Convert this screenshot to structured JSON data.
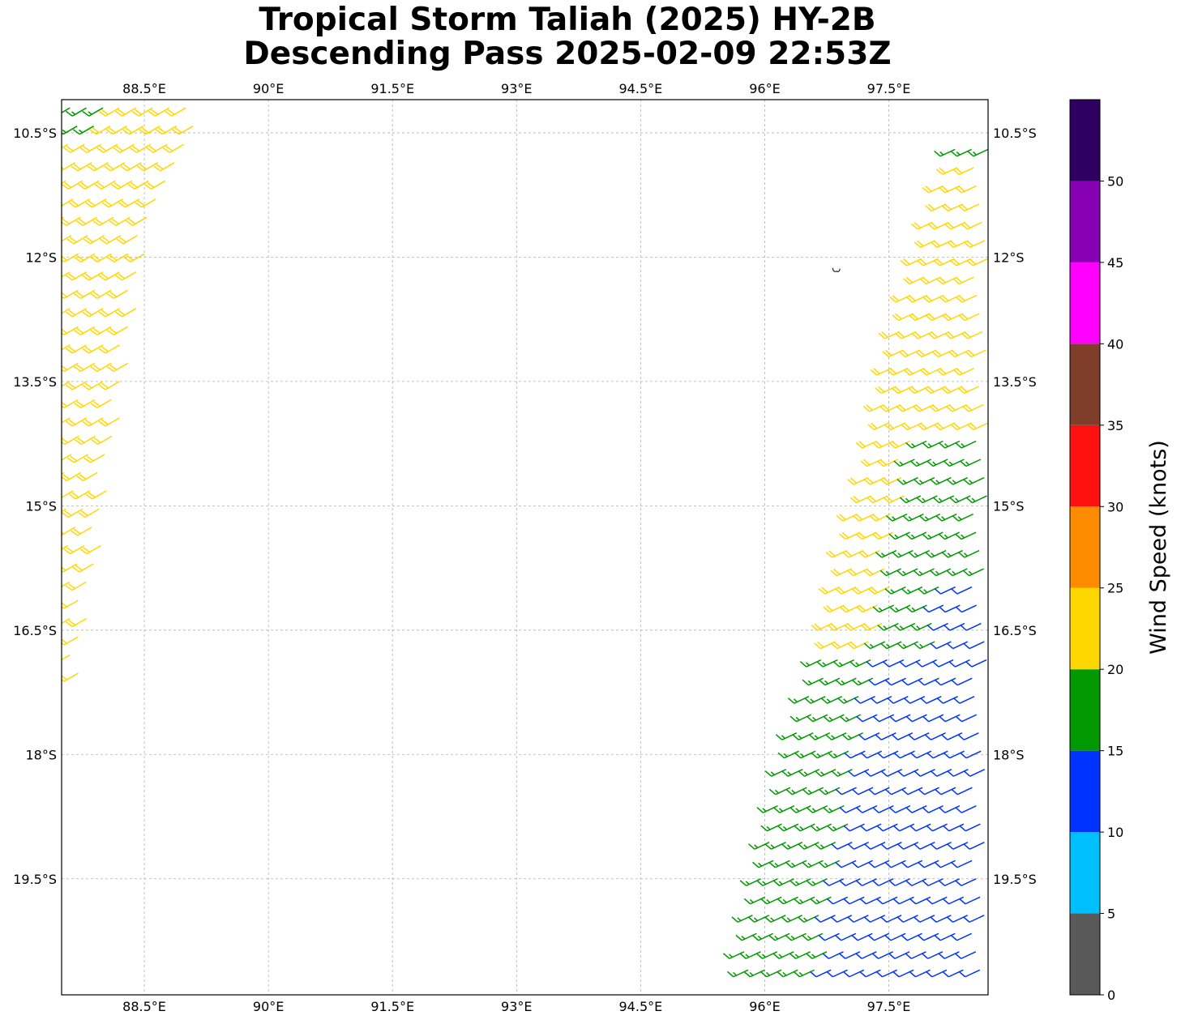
{
  "title": {
    "line1": "Tropical Storm Taliah (2025) HY-2B",
    "line2": "Descending Pass 2025-02-09 22:53Z"
  },
  "map": {
    "lon_range": [
      87.5,
      98.7
    ],
    "lat_range": [
      -20.9,
      -10.1
    ],
    "gridlines": true,
    "lon_ticks": [
      {
        "value": 88.5,
        "label": "88.5°E"
      },
      {
        "value": 90.0,
        "label": "90°E"
      },
      {
        "value": 91.5,
        "label": "91.5°E"
      },
      {
        "value": 93.0,
        "label": "93°E"
      },
      {
        "value": 94.5,
        "label": "94.5°E"
      },
      {
        "value": 96.0,
        "label": "96°E"
      },
      {
        "value": 97.5,
        "label": "97.5°E"
      }
    ],
    "lat_ticks": [
      {
        "value": -10.5,
        "label": "10.5°S"
      },
      {
        "value": -12.0,
        "label": "12°S"
      },
      {
        "value": -13.5,
        "label": "13.5°S"
      },
      {
        "value": -15.0,
        "label": "15°S"
      },
      {
        "value": -16.5,
        "label": "16.5°S"
      },
      {
        "value": -18.0,
        "label": "18°S"
      },
      {
        "value": -19.5,
        "label": "19.5°S"
      }
    ],
    "islands": [
      {
        "name": "",
        "lon": 96.86,
        "lat": -12.17
      }
    ],
    "swaths": [
      {
        "id": "west",
        "lon_start_north": 87.9,
        "lon_start_south": 87.6,
        "lat_north": -10.15,
        "lat_south": -17.3,
        "rows": [
          {
            "lat": -10.2,
            "lon_from": 87.6,
            "lon_to": 89.2,
            "speed": 22
          },
          {
            "lat": -12.0,
            "lon_from": 87.5,
            "lon_to": 88.5,
            "speed": 22
          },
          {
            "lat": -14.0,
            "lon_from": 87.5,
            "lon_to": 88.2,
            "speed": 22
          },
          {
            "lat": -16.0,
            "lon_from": 87.6,
            "lon_to": 87.9,
            "speed": 22
          },
          {
            "lat": -17.2,
            "lon_from": 87.6,
            "lon_to": 87.7,
            "speed": 22
          }
        ],
        "green_corner": {
          "lat": -10.2,
          "lon_from": 87.6,
          "lon_to": 88.0,
          "speed": 17
        },
        "direction_deg": 240
      },
      {
        "id": "east",
        "rows": [
          {
            "lat": -10.7,
            "lon_from": 98.3,
            "lon_to": 98.7,
            "speed": 17
          },
          {
            "lat": -11.0,
            "lon_from": 98.2,
            "lon_to": 98.7,
            "speed": 22
          },
          {
            "lat": -13.0,
            "lon_from": 97.6,
            "lon_to": 98.7,
            "speed": 22
          },
          {
            "lat": -14.5,
            "lon_from": 97.3,
            "lon_to": 98.7,
            "speed": 22
          },
          {
            "lat": -15.5,
            "lon_from": 97.0,
            "lon_to": 98.7,
            "speed": 18
          },
          {
            "lat": -16.5,
            "lon_from": 96.8,
            "lon_to": 98.7,
            "speed": 14
          },
          {
            "lat": -18.0,
            "lon_from": 96.3,
            "lon_to": 98.7,
            "speed": 13
          },
          {
            "lat": -20.6,
            "lon_from": 95.7,
            "lon_to": 98.7,
            "speed": 12
          }
        ],
        "direction_deg": 245
      }
    ]
  },
  "colorbar": {
    "label": "Wind Speed (knots)",
    "min": 0,
    "max": 55,
    "bins": [
      {
        "from": 0,
        "to": 5,
        "color": "#595959"
      },
      {
        "from": 5,
        "to": 10,
        "color": "#00bfff"
      },
      {
        "from": 10,
        "to": 15,
        "color": "#0033ff"
      },
      {
        "from": 15,
        "to": 20,
        "color": "#009900"
      },
      {
        "from": 20,
        "to": 25,
        "color": "#ffd700"
      },
      {
        "from": 25,
        "to": 30,
        "color": "#ff8c00"
      },
      {
        "from": 30,
        "to": 35,
        "color": "#ff1111"
      },
      {
        "from": 35,
        "to": 40,
        "color": "#803e2a"
      },
      {
        "from": 40,
        "to": 45,
        "color": "#ff00ff"
      },
      {
        "from": 45,
        "to": 50,
        "color": "#8800b3"
      },
      {
        "from": 50,
        "to": 55,
        "color": "#2e0060"
      }
    ],
    "ticks": [
      {
        "value": 0,
        "label": "0"
      },
      {
        "value": 5,
        "label": "5"
      },
      {
        "value": 10,
        "label": "10"
      },
      {
        "value": 15,
        "label": "15"
      },
      {
        "value": 20,
        "label": "20"
      },
      {
        "value": 25,
        "label": "25"
      },
      {
        "value": 30,
        "label": "30"
      },
      {
        "value": 35,
        "label": "35"
      },
      {
        "value": 40,
        "label": "40"
      },
      {
        "value": 45,
        "label": "45"
      },
      {
        "value": 50,
        "label": "50"
      }
    ]
  }
}
